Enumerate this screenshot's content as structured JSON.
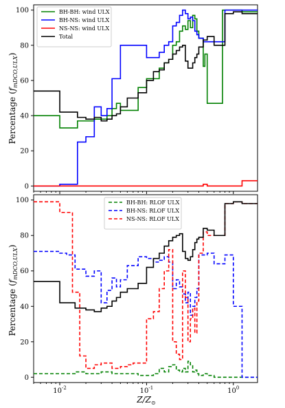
{
  "figure": {
    "xlabel": "Z/Z⊙"
  },
  "chart_data": [
    {
      "type": "line",
      "panel": "top",
      "ylabel": "Percentage (f_mDCO,ULX)",
      "xscale": "log",
      "xlim": [
        0.005,
        1.9
      ],
      "ylim": [
        -3,
        103
      ],
      "yticks": [
        0,
        20,
        40,
        60,
        80,
        100
      ],
      "xticks": [
        "10^-2",
        "10^-1",
        "10^0"
      ],
      "legend_position": "upper-left",
      "series": [
        {
          "name": "BH-BH: wind ULX",
          "color": "#008000",
          "style": "solid",
          "x": [
            0.005,
            0.01,
            0.016,
            0.02,
            0.025,
            0.03,
            0.035,
            0.04,
            0.045,
            0.05,
            0.06,
            0.08,
            0.1,
            0.12,
            0.14,
            0.16,
            0.18,
            0.2,
            0.22,
            0.24,
            0.26,
            0.28,
            0.3,
            0.32,
            0.34,
            0.36,
            0.38,
            0.4,
            0.45,
            0.47,
            0.5,
            0.6,
            0.75,
            0.8,
            1.0,
            1.26,
            1.9
          ],
          "y": [
            40,
            33,
            37,
            37,
            38,
            38,
            40,
            44,
            47,
            43,
            43,
            56,
            61,
            61,
            67,
            70,
            72,
            80,
            82,
            88,
            91,
            89,
            94,
            90,
            97,
            95,
            88,
            84,
            68,
            75,
            47,
            47,
            100,
            100,
            100,
            99,
            99
          ]
        },
        {
          "name": "BH-NS: wind ULX",
          "color": "#0000ff",
          "style": "solid",
          "x": [
            0.005,
            0.01,
            0.016,
            0.02,
            0.025,
            0.03,
            0.035,
            0.04,
            0.045,
            0.05,
            0.06,
            0.08,
            0.1,
            0.12,
            0.14,
            0.16,
            0.18,
            0.2,
            0.22,
            0.24,
            0.26,
            0.28,
            0.3,
            0.32,
            0.34,
            0.36,
            0.38,
            0.4,
            0.45,
            0.5,
            0.6,
            0.8,
            1.0,
            1.26,
            1.9
          ],
          "y": [
            0,
            1,
            25,
            28,
            45,
            40,
            44,
            61,
            61,
            80,
            80,
            80,
            73,
            73,
            76,
            80,
            82,
            91,
            93,
            97,
            100,
            98,
            95,
            96,
            94,
            88,
            86,
            84,
            82,
            82,
            82,
            100,
            100,
            100,
            100
          ]
        },
        {
          "name": "NS-NS: wind ULX",
          "color": "#ff0000",
          "style": "solid",
          "x": [
            0.005,
            0.01,
            0.05,
            0.1,
            0.4,
            0.45,
            0.5,
            1.0,
            1.26,
            1.9
          ],
          "y": [
            0,
            0,
            0,
            0,
            0,
            1,
            0,
            0,
            3,
            3
          ]
        },
        {
          "name": "Total",
          "color": "#000000",
          "style": "solid",
          "x": [
            0.005,
            0.01,
            0.016,
            0.02,
            0.025,
            0.03,
            0.035,
            0.04,
            0.045,
            0.05,
            0.06,
            0.08,
            0.1,
            0.12,
            0.14,
            0.16,
            0.18,
            0.2,
            0.22,
            0.24,
            0.26,
            0.28,
            0.3,
            0.32,
            0.34,
            0.36,
            0.38,
            0.4,
            0.45,
            0.5,
            0.6,
            0.8,
            1.0,
            1.26,
            1.9
          ],
          "y": [
            54,
            42,
            39,
            38,
            39,
            37,
            38,
            40,
            41,
            45,
            50,
            53,
            60,
            65,
            66,
            70,
            72,
            75,
            77,
            79,
            80,
            71,
            67,
            67,
            70,
            73,
            75,
            79,
            83,
            85,
            80,
            98,
            99,
            98,
            98
          ]
        }
      ]
    },
    {
      "type": "line",
      "panel": "bottom",
      "ylabel": "Percentage (f_mDCO,ULX)",
      "xscale": "log",
      "xlim": [
        0.005,
        1.9
      ],
      "ylim": [
        -3,
        103
      ],
      "yticks": [
        0,
        20,
        40,
        60,
        80,
        100
      ],
      "xticks": [
        "10^-2",
        "10^-1",
        "10^0"
      ],
      "legend_position": "upper-center",
      "series": [
        {
          "name": "BH-BH: RLOF ULX",
          "color": "#008000",
          "style": "dashed",
          "x": [
            0.005,
            0.01,
            0.015,
            0.02,
            0.03,
            0.04,
            0.05,
            0.06,
            0.08,
            0.1,
            0.12,
            0.14,
            0.16,
            0.18,
            0.2,
            0.22,
            0.24,
            0.26,
            0.28,
            0.3,
            0.32,
            0.34,
            0.36,
            0.38,
            0.4,
            0.45,
            0.5,
            0.6,
            1.0,
            1.26,
            1.9
          ],
          "y": [
            2,
            2,
            3,
            2,
            3,
            2,
            2,
            2,
            1,
            1,
            2,
            5,
            3,
            6,
            7,
            4,
            3,
            5,
            3,
            9,
            7,
            3,
            4,
            2,
            1,
            2,
            1,
            0,
            0,
            0,
            0
          ]
        },
        {
          "name": "BH-NS: RLOF ULX",
          "color": "#0000ff",
          "style": "dashed",
          "x": [
            0.005,
            0.01,
            0.012,
            0.015,
            0.02,
            0.025,
            0.03,
            0.035,
            0.04,
            0.045,
            0.05,
            0.06,
            0.08,
            0.1,
            0.12,
            0.14,
            0.16,
            0.18,
            0.2,
            0.22,
            0.24,
            0.26,
            0.28,
            0.3,
            0.32,
            0.34,
            0.36,
            0.38,
            0.4,
            0.5,
            0.6,
            0.8,
            1.0,
            1.26,
            1.9
          ],
          "y": [
            71,
            70,
            69,
            61,
            57,
            60,
            42,
            49,
            56,
            51,
            55,
            63,
            68,
            67,
            65,
            66,
            68,
            65,
            50,
            55,
            51,
            47,
            42,
            48,
            35,
            40,
            45,
            50,
            69,
            70,
            64,
            69,
            40,
            0,
            0
          ]
        },
        {
          "name": "NS-NS: RLOF ULX",
          "color": "#ff0000",
          "style": "dashed",
          "x": [
            0.005,
            0.01,
            0.014,
            0.017,
            0.02,
            0.025,
            0.03,
            0.04,
            0.05,
            0.06,
            0.07,
            0.1,
            0.12,
            0.14,
            0.16,
            0.18,
            0.2,
            0.22,
            0.24,
            0.26,
            0.28,
            0.3,
            0.32,
            0.34,
            0.36,
            0.38,
            0.4,
            0.45,
            0.5,
            0.6,
            0.8,
            1.0,
            1.26,
            1.9
          ],
          "y": [
            99,
            93,
            48,
            12,
            5,
            7,
            8,
            5,
            6,
            7,
            8,
            33,
            37,
            50,
            60,
            72,
            20,
            13,
            10,
            60,
            45,
            20,
            33,
            39,
            25,
            43,
            70,
            82,
            80,
            80,
            98,
            99,
            98,
            98
          ]
        },
        {
          "name": "",
          "color": "#000000",
          "style": "solid",
          "x": [
            0.005,
            0.01,
            0.015,
            0.02,
            0.025,
            0.03,
            0.035,
            0.04,
            0.045,
            0.05,
            0.06,
            0.08,
            0.1,
            0.12,
            0.14,
            0.16,
            0.18,
            0.2,
            0.22,
            0.24,
            0.26,
            0.28,
            0.3,
            0.32,
            0.34,
            0.36,
            0.38,
            0.4,
            0.45,
            0.5,
            0.6,
            0.8,
            1.0,
            1.26,
            1.9
          ],
          "y": [
            54,
            42,
            39,
            38,
            37,
            39,
            40,
            43,
            45,
            48,
            50,
            53,
            62,
            67,
            70,
            74,
            77,
            79,
            80,
            81,
            71,
            67,
            66,
            68,
            72,
            76,
            78,
            79,
            84,
            83,
            80,
            98,
            99,
            98,
            98
          ]
        }
      ]
    }
  ]
}
